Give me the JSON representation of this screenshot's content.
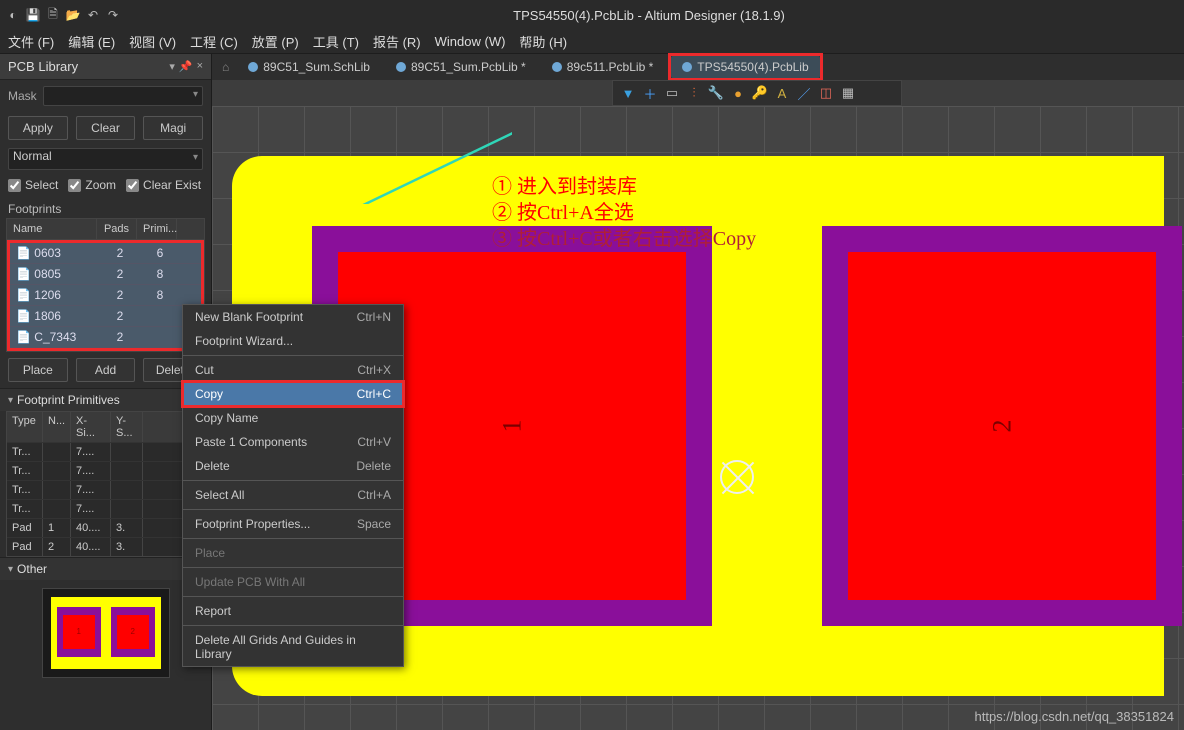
{
  "window": {
    "title": "TPS54550(4).PcbLib - Altium Designer (18.1.9)"
  },
  "menu": {
    "file": "文件 (F)",
    "edit": "编辑 (E)",
    "view": "视图 (V)",
    "project": "工程 (C)",
    "place": "放置 (P)",
    "tools": "工具 (T)",
    "report": "报告 (R)",
    "window": "Window (W)",
    "help": "帮助 (H)"
  },
  "panel": {
    "title": "PCB Library",
    "mask_label": "Mask",
    "apply": "Apply",
    "clear": "Clear",
    "mag": "Magi",
    "sel_mode": "Normal",
    "cb_select": "Select",
    "cb_zoom": "Zoom",
    "cb_clearexist": "Clear Exist",
    "footprints_label": "Footprints",
    "hdr_name": "Name",
    "hdr_pads": "Pads",
    "hdr_prim": "Primi...",
    "rows": [
      {
        "name": "0603",
        "pads": "2",
        "prim": "6"
      },
      {
        "name": "0805",
        "pads": "2",
        "prim": "8"
      },
      {
        "name": "1206",
        "pads": "2",
        "prim": "8"
      },
      {
        "name": "1806",
        "pads": "2",
        "prim": ""
      },
      {
        "name": "C_7343",
        "pads": "2",
        "prim": ""
      }
    ],
    "btn_place": "Place",
    "btn_add": "Add",
    "btn_delete": "Delete",
    "section_prim": "Footprint Primitives",
    "prim_hdr": {
      "type": "Type",
      "n": "N...",
      "xs": "X-Si...",
      "ys": "Y-S..."
    },
    "prim_rows": [
      {
        "t": "Tr...",
        "n": "",
        "x": "7....",
        "y": ""
      },
      {
        "t": "Tr...",
        "n": "",
        "x": "7....",
        "y": ""
      },
      {
        "t": "Tr...",
        "n": "",
        "x": "7....",
        "y": ""
      },
      {
        "t": "Tr...",
        "n": "",
        "x": "7....",
        "y": ""
      },
      {
        "t": "Pad",
        "n": "1",
        "x": "40....",
        "y": "3."
      },
      {
        "t": "Pad",
        "n": "2",
        "x": "40....",
        "y": "3."
      }
    ],
    "section_other": "Other"
  },
  "tabs": [
    {
      "label": "89C51_Sum.SchLib",
      "active": false
    },
    {
      "label": "89C51_Sum.PcbLib *",
      "active": false
    },
    {
      "label": "89c511.PcbLib *",
      "active": false
    },
    {
      "label": "TPS54550(4).PcbLib",
      "active": true
    }
  ],
  "annotations": {
    "l1": "①  进入到封装库",
    "l2": "②  按Ctrl+A全选",
    "l3": "③  按Ctrl+C或者右击选择Copy"
  },
  "ctx": {
    "new": "New Blank Footprint",
    "new_sc": "Ctrl+N",
    "wizard": "Footprint Wizard...",
    "cut": "Cut",
    "cut_sc": "Ctrl+X",
    "copy": "Copy",
    "copy_sc": "Ctrl+C",
    "copyname": "Copy Name",
    "paste": "Paste 1 Components",
    "paste_sc": "Ctrl+V",
    "delete": "Delete",
    "delete_sc": "Delete",
    "selall": "Select All",
    "selall_sc": "Ctrl+A",
    "props": "Footprint Properties...",
    "props_sc": "Space",
    "place": "Place",
    "update": "Update PCB With All",
    "report": "Report",
    "delgrids": "Delete All Grids And Guides in Library"
  },
  "watermark": "https://blog.csdn.net/qq_38351824",
  "colors": {
    "board": "#ffff00",
    "purple": "#8a0f9a",
    "pad": "#ff0000",
    "highlight": "#ec2a2c",
    "arrow": "#2fd6b8"
  }
}
